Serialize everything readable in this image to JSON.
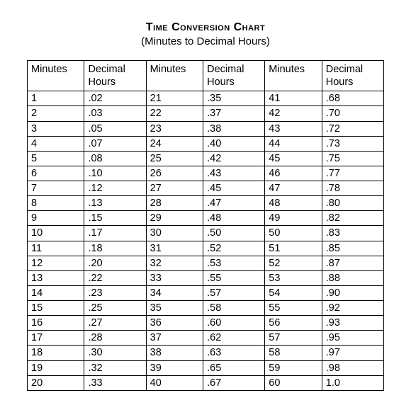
{
  "title": "Time Conversion Chart",
  "subtitle": "(Minutes to Decimal Hours)",
  "table": {
    "headers": {
      "minutes": "Minutes",
      "decimal": "Decimal Hours"
    },
    "columns": 3,
    "rows_per_column": 20,
    "data": [
      {
        "min": "1",
        "dec": ".02"
      },
      {
        "min": "2",
        "dec": ".03"
      },
      {
        "min": "3",
        "dec": ".05"
      },
      {
        "min": "4",
        "dec": ".07"
      },
      {
        "min": "5",
        "dec": ".08"
      },
      {
        "min": "6",
        "dec": ".10"
      },
      {
        "min": "7",
        "dec": ".12"
      },
      {
        "min": "8",
        "dec": ".13"
      },
      {
        "min": "9",
        "dec": ".15"
      },
      {
        "min": "10",
        "dec": ".17"
      },
      {
        "min": "11",
        "dec": ".18"
      },
      {
        "min": "12",
        "dec": ".20"
      },
      {
        "min": "13",
        "dec": ".22"
      },
      {
        "min": "14",
        "dec": ".23"
      },
      {
        "min": "15",
        "dec": ".25"
      },
      {
        "min": "16",
        "dec": ".27"
      },
      {
        "min": "17",
        "dec": ".28"
      },
      {
        "min": "18",
        "dec": ".30"
      },
      {
        "min": "19",
        "dec": ".32"
      },
      {
        "min": "20",
        "dec": ".33"
      },
      {
        "min": "21",
        "dec": ".35"
      },
      {
        "min": "22",
        "dec": ".37"
      },
      {
        "min": "23",
        "dec": ".38"
      },
      {
        "min": "24",
        "dec": ".40"
      },
      {
        "min": "25",
        "dec": ".42"
      },
      {
        "min": "26",
        "dec": ".43"
      },
      {
        "min": "27",
        "dec": ".45"
      },
      {
        "min": "28",
        "dec": ".47"
      },
      {
        "min": "29",
        "dec": ".48"
      },
      {
        "min": "30",
        "dec": ".50"
      },
      {
        "min": "31",
        "dec": ".52"
      },
      {
        "min": "32",
        "dec": ".53"
      },
      {
        "min": "33",
        "dec": ".55"
      },
      {
        "min": "34",
        "dec": ".57"
      },
      {
        "min": "35",
        "dec": ".58"
      },
      {
        "min": "36",
        "dec": ".60"
      },
      {
        "min": "37",
        "dec": ".62"
      },
      {
        "min": "38",
        "dec": ".63"
      },
      {
        "min": "39",
        "dec": ".65"
      },
      {
        "min": "40",
        "dec": ".67"
      },
      {
        "min": "41",
        "dec": ".68"
      },
      {
        "min": "42",
        "dec": ".70"
      },
      {
        "min": "43",
        "dec": ".72"
      },
      {
        "min": "44",
        "dec": ".73"
      },
      {
        "min": "45",
        "dec": ".75"
      },
      {
        "min": "46",
        "dec": ".77"
      },
      {
        "min": "47",
        "dec": ".78"
      },
      {
        "min": "48",
        "dec": ".80"
      },
      {
        "min": "49",
        "dec": ".82"
      },
      {
        "min": "50",
        "dec": ".83"
      },
      {
        "min": "51",
        "dec": ".85"
      },
      {
        "min": "52",
        "dec": ".87"
      },
      {
        "min": "53",
        "dec": ".88"
      },
      {
        "min": "54",
        "dec": ".90"
      },
      {
        "min": "55",
        "dec": ".92"
      },
      {
        "min": "56",
        "dec": ".93"
      },
      {
        "min": "57",
        "dec": ".95"
      },
      {
        "min": "58",
        "dec": ".97"
      },
      {
        "min": "59",
        "dec": ".98"
      },
      {
        "min": "60",
        "dec": "1.0"
      }
    ]
  },
  "style": {
    "background_color": "#ffffff",
    "text_color": "#000000",
    "border_color": "#000000",
    "title_fontsize": 16,
    "subtitle_fontsize": 15,
    "body_fontsize": 14.5,
    "font_family": "Arial"
  }
}
